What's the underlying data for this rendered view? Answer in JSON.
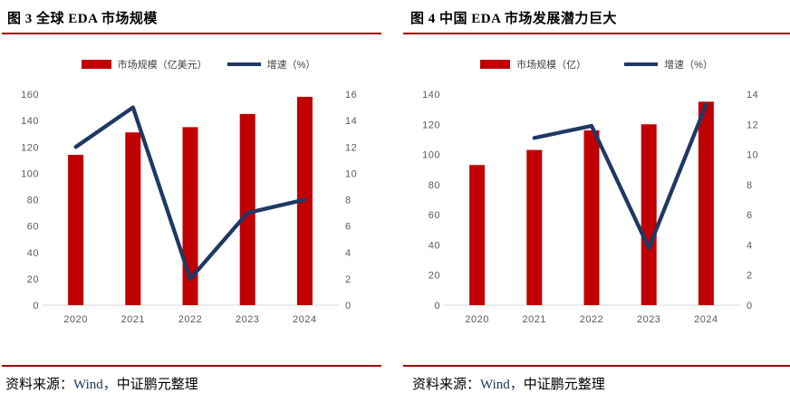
{
  "colors": {
    "bar": "#C00000",
    "line": "#1F3864",
    "rule": "#A00000",
    "axis_text": "#595959",
    "baseline": "#D9D9D9",
    "legend_text": "#404040",
    "source_link": "#17375E"
  },
  "panels": [
    {
      "title": "图 3 全球 EDA 市场规模",
      "legend": [
        {
          "swatch": "bar",
          "label": "市场规模（亿美元）"
        },
        {
          "swatch": "line",
          "label": "增速（%）"
        }
      ],
      "source": {
        "label": "资料来源：",
        "link": "Wind，",
        "rest": "中证鹏元整理"
      }
    },
    {
      "title": "图 4 中国 EDA 市场发展潜力巨大",
      "legend": [
        {
          "swatch": "bar",
          "label": "市场规模（亿）"
        },
        {
          "swatch": "line",
          "label": "增速（%）"
        }
      ],
      "source": {
        "label": "资料来源：",
        "link": "Wind，",
        "rest": "中证鹏元整理"
      }
    }
  ],
  "chart_data": [
    {
      "type": "bar",
      "subtype": "combo-bar-line",
      "title": "图 3 全球 EDA 市场规模",
      "categories": [
        "2020",
        "2021",
        "2022",
        "2023",
        "2024"
      ],
      "series": [
        {
          "name": "市场规模（亿美元）",
          "type": "bar",
          "axis": "left",
          "color": "#C00000",
          "values": [
            114,
            131,
            135,
            145,
            158
          ]
        },
        {
          "name": "增速（%）",
          "type": "line",
          "axis": "right",
          "color": "#1F3864",
          "values": [
            12,
            15,
            2,
            7,
            8
          ]
        }
      ],
      "left_axis": {
        "min": 0,
        "max": 160,
        "step": 20
      },
      "right_axis": {
        "min": 0,
        "max": 16,
        "step": 2
      },
      "grid": false,
      "legend_position": "top"
    },
    {
      "type": "bar",
      "subtype": "combo-bar-line",
      "title": "图 4 中国 EDA 市场发展潜力巨大",
      "categories": [
        "2020",
        "2021",
        "2022",
        "2023",
        "2024"
      ],
      "series": [
        {
          "name": "市场规模（亿）",
          "type": "bar",
          "axis": "left",
          "color": "#C00000",
          "values": [
            93,
            103,
            116,
            120,
            135
          ]
        },
        {
          "name": "增速（%）",
          "type": "line",
          "axis": "right",
          "color": "#1F3864",
          "values": [
            null,
            11.1,
            11.9,
            3.8,
            13.3
          ]
        }
      ],
      "left_axis": {
        "min": 0,
        "max": 140,
        "step": 20
      },
      "right_axis": {
        "min": 0,
        "max": 14,
        "step": 2
      },
      "grid": false,
      "legend_position": "top"
    }
  ]
}
